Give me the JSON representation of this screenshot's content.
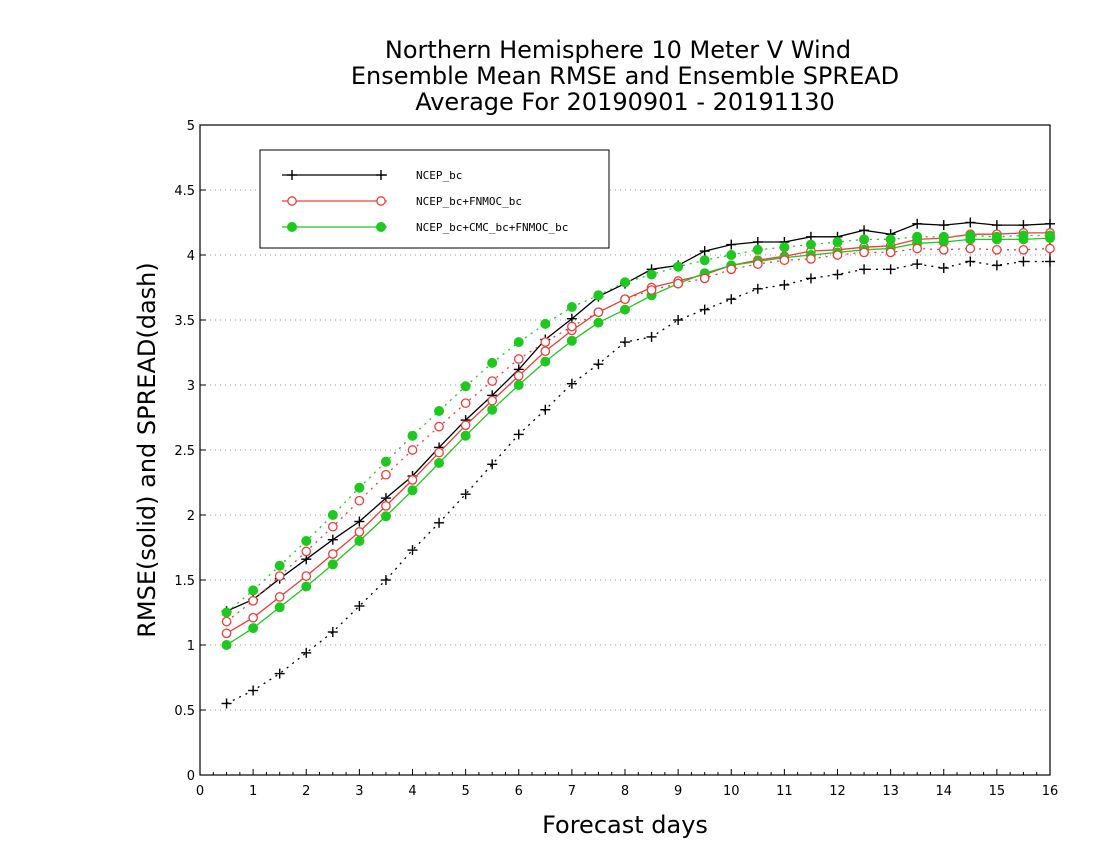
{
  "chart_data": {
    "type": "line",
    "title_lines": [
      "Northern Hemisphere 10 Meter V Wind",
      "Ensemble Mean RMSE and Ensemble SPREAD",
      "Average For 20190901 - 20191130"
    ],
    "xlabel": "Forecast days",
    "ylabel": "RMSE(solid) and SPREAD(dash)",
    "xlim": [
      0,
      16
    ],
    "ylim": [
      0,
      5
    ],
    "xticks": [
      0,
      1,
      2,
      3,
      4,
      5,
      6,
      7,
      8,
      9,
      10,
      11,
      12,
      13,
      14,
      15,
      16
    ],
    "yticks": [
      0,
      0.5,
      1,
      1.5,
      2,
      2.5,
      3,
      3.5,
      4,
      4.5,
      5
    ],
    "ytick_labels": [
      "0",
      "0.5",
      "1",
      "1.5",
      "2",
      "2.5",
      "3",
      "3.5",
      "4",
      "4.5",
      "5"
    ],
    "grid": "horizontal dotted",
    "legend_position": "top-left",
    "x": [
      0.5,
      1,
      1.5,
      2,
      2.5,
      3,
      3.5,
      4,
      4.5,
      5,
      5.5,
      6,
      6.5,
      7,
      7.5,
      8,
      8.5,
      9,
      9.5,
      10,
      10.5,
      11,
      11.5,
      12,
      12.5,
      13,
      13.5,
      14,
      14.5,
      15,
      15.5,
      16
    ],
    "series": [
      {
        "name": "NCEP_bc",
        "metric": "RMSE",
        "style": "solid",
        "marker": "plus",
        "color": "#000000",
        "values": [
          1.26,
          1.35,
          1.51,
          1.66,
          1.81,
          1.95,
          2.13,
          2.3,
          2.52,
          2.73,
          2.92,
          3.12,
          3.35,
          3.51,
          3.68,
          3.78,
          3.89,
          3.92,
          4.03,
          4.08,
          4.1,
          4.1,
          4.14,
          4.14,
          4.19,
          4.16,
          4.24,
          4.23,
          4.25,
          4.23,
          4.23,
          4.24
        ]
      },
      {
        "name": "NCEP_bc+FNMOC_bc",
        "metric": "RMSE",
        "style": "solid",
        "marker": "open-circle",
        "color": "#f03c3c",
        "values": [
          1.09,
          1.21,
          1.37,
          1.53,
          1.7,
          1.87,
          2.07,
          2.27,
          2.48,
          2.69,
          2.88,
          3.07,
          3.26,
          3.42,
          3.56,
          3.66,
          3.75,
          3.8,
          3.85,
          3.92,
          3.96,
          3.99,
          4.03,
          4.04,
          4.06,
          4.07,
          4.12,
          4.13,
          4.16,
          4.16,
          4.17,
          4.17
        ]
      },
      {
        "name": "NCEP_bc+CMC_bc+FNMOC_bc",
        "metric": "RMSE",
        "style": "solid",
        "marker": "filled-circle",
        "color": "#1ec81e",
        "values": [
          1.0,
          1.13,
          1.29,
          1.45,
          1.62,
          1.8,
          1.99,
          2.19,
          2.4,
          2.61,
          2.81,
          3.0,
          3.18,
          3.34,
          3.48,
          3.58,
          3.69,
          3.78,
          3.86,
          3.92,
          3.95,
          3.98,
          4.0,
          4.02,
          4.04,
          4.05,
          4.09,
          4.1,
          4.12,
          4.12,
          4.12,
          4.13
        ]
      },
      {
        "name": "NCEP_bc",
        "metric": "SPREAD",
        "style": "dash",
        "marker": "plus",
        "color": "#000000",
        "values": [
          0.55,
          0.65,
          0.78,
          0.94,
          1.1,
          1.3,
          1.5,
          1.73,
          1.94,
          2.16,
          2.39,
          2.62,
          2.81,
          3.01,
          3.16,
          3.33,
          3.37,
          3.5,
          3.58,
          3.66,
          3.74,
          3.77,
          3.82,
          3.85,
          3.89,
          3.89,
          3.93,
          3.9,
          3.95,
          3.92,
          3.95,
          3.95
        ]
      },
      {
        "name": "NCEP_bc+FNMOC_bc",
        "metric": "SPREAD",
        "style": "dash",
        "marker": "open-circle",
        "color": "#f03c3c",
        "values": [
          1.18,
          1.34,
          1.53,
          1.72,
          1.91,
          2.11,
          2.31,
          2.5,
          2.68,
          2.86,
          3.03,
          3.2,
          3.33,
          3.45,
          3.56,
          3.66,
          3.73,
          3.78,
          3.82,
          3.89,
          3.93,
          3.96,
          3.97,
          4.0,
          4.02,
          4.02,
          4.05,
          4.04,
          4.05,
          4.04,
          4.04,
          4.05
        ]
      },
      {
        "name": "NCEP_bc+CMC_bc+FNMOC_bc",
        "metric": "SPREAD",
        "style": "dash",
        "marker": "filled-circle",
        "color": "#1ec81e",
        "values": [
          1.25,
          1.42,
          1.61,
          1.8,
          2.0,
          2.21,
          2.41,
          2.61,
          2.8,
          2.99,
          3.17,
          3.33,
          3.47,
          3.6,
          3.69,
          3.79,
          3.85,
          3.91,
          3.96,
          4.0,
          4.04,
          4.06,
          4.08,
          4.1,
          4.12,
          4.12,
          4.14,
          4.14,
          4.15,
          4.14,
          4.15,
          4.15
        ]
      }
    ],
    "legend": [
      {
        "label": "NCEP_bc",
        "marker": "plus",
        "color": "#000000"
      },
      {
        "label": "NCEP_bc+FNMOC_bc",
        "marker": "open-circle",
        "color": "#f03c3c"
      },
      {
        "label": "NCEP_bc+CMC_bc+FNMOC_bc",
        "marker": "filled-circle",
        "color": "#1ec81e"
      }
    ]
  }
}
